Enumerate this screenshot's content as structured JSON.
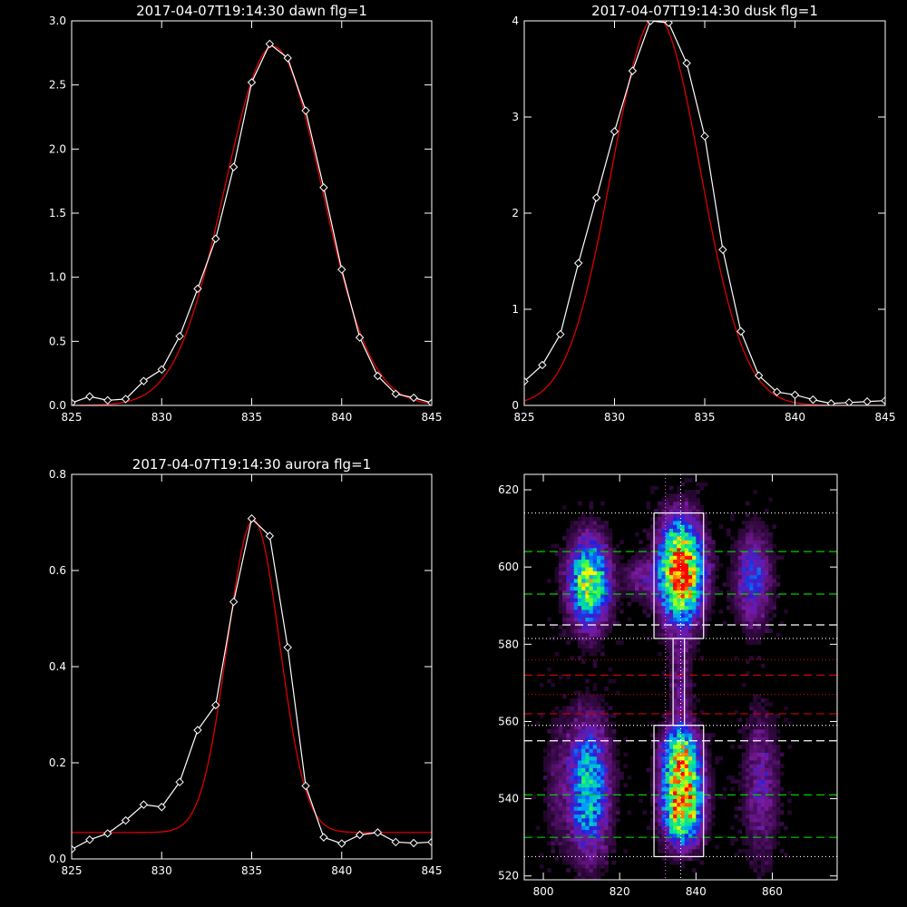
{
  "chart_data": [
    {
      "type": "line",
      "title": "2017-04-07T19:14:30 dawn flg=1",
      "xlim": [
        825,
        845
      ],
      "ylim": [
        0,
        3.0
      ],
      "xticks": [
        "825",
        "830",
        "835",
        "840",
        "845"
      ],
      "yticks": [
        "0.0",
        "0.5",
        "1.0",
        "1.5",
        "2.0",
        "2.5",
        "3.0"
      ],
      "grid": false,
      "series": [
        {
          "kind": "data",
          "color": "#ffffff",
          "marker": "diamond",
          "x": [
            825,
            826,
            827,
            828,
            829,
            830,
            831,
            832,
            833,
            834,
            835,
            836,
            837,
            838,
            839,
            840,
            841,
            842,
            843,
            844,
            845
          ],
          "y": [
            0.02,
            0.07,
            0.04,
            0.05,
            0.19,
            0.28,
            0.54,
            0.91,
            1.3,
            1.86,
            2.52,
            2.82,
            2.71,
            2.3,
            1.7,
            1.06,
            0.53,
            0.23,
            0.09,
            0.06,
            0.02
          ]
        },
        {
          "kind": "fit",
          "color": "#dd0000",
          "gauss": {
            "amp": 2.8,
            "mu": 836.2,
            "sigma": 2.7,
            "base": 0.0
          }
        }
      ]
    },
    {
      "type": "line",
      "title": "2017-04-07T19:14:30 dusk flg=1",
      "xlim": [
        825,
        845
      ],
      "ylim": [
        0,
        4
      ],
      "xticks": [
        "825",
        "830",
        "835",
        "840",
        "845"
      ],
      "yticks": [
        "0",
        "1",
        "2",
        "3",
        "4"
      ],
      "grid": false,
      "series": [
        {
          "kind": "data",
          "color": "#ffffff",
          "marker": "diamond",
          "x": [
            825,
            826,
            827,
            828,
            829,
            830,
            831,
            832,
            833,
            834,
            835,
            836,
            837,
            838,
            839,
            840,
            841,
            842,
            843,
            844,
            845
          ],
          "y": [
            0.25,
            0.42,
            0.74,
            1.48,
            2.16,
            2.85,
            3.48,
            4.0,
            3.98,
            3.56,
            2.8,
            1.62,
            0.77,
            0.31,
            0.14,
            0.11,
            0.06,
            0.02,
            0.03,
            0.04,
            0.05
          ]
        },
        {
          "kind": "fit",
          "color": "#dd0000",
          "gauss": {
            "amp": 4.05,
            "mu": 832.3,
            "sigma": 2.45,
            "base": 0.0
          }
        }
      ]
    },
    {
      "type": "line",
      "title": "2017-04-07T19:14:30 aurora flg=1",
      "xlim": [
        825,
        845
      ],
      "ylim": [
        0,
        0.8
      ],
      "xticks": [
        "825",
        "830",
        "835",
        "840",
        "845"
      ],
      "yticks": [
        "0.0",
        "0.2",
        "0.4",
        "0.6",
        "0.8"
      ],
      "grid": false,
      "series": [
        {
          "kind": "data",
          "color": "#ffffff",
          "marker": "diamond",
          "x": [
            825,
            826,
            827,
            828,
            829,
            830,
            831,
            832,
            833,
            834,
            835,
            836,
            837,
            838,
            839,
            840,
            841,
            842,
            843,
            844,
            845
          ],
          "y": [
            0.02,
            0.04,
            0.053,
            0.08,
            0.113,
            0.108,
            0.16,
            0.268,
            0.32,
            0.535,
            0.708,
            0.672,
            0.44,
            0.152,
            0.045,
            0.032,
            0.05,
            0.055,
            0.035,
            0.033,
            0.035
          ]
        },
        {
          "kind": "fit",
          "color": "#dd0000",
          "gauss": {
            "amp": 0.65,
            "mu": 835.1,
            "sigma": 1.45,
            "base": 0.055
          }
        }
      ]
    },
    {
      "type": "heatmap",
      "title": "",
      "xlim": [
        795,
        877
      ],
      "ylim": [
        519,
        624
      ],
      "xticks": [
        "800",
        "820",
        "840",
        "860"
      ],
      "yticks": [
        "520",
        "540",
        "560",
        "580",
        "600",
        "620"
      ],
      "colorscale": [
        "#000000",
        "#3a0a4a",
        "#7a1aa0",
        "#2020e0",
        "#00a0ff",
        "#00e0a0",
        "#40ff40",
        "#ffff00",
        "#ff8000",
        "#ff0000"
      ],
      "blobs": [
        {
          "x": 836,
          "y": 599,
          "sx": 4.0,
          "sy": 9,
          "amp": 1.0
        },
        {
          "x": 836.5,
          "y": 539,
          "sx": 3.6,
          "sy": 7,
          "amp": 0.95
        },
        {
          "x": 836,
          "y": 552,
          "sx": 3.4,
          "sy": 5,
          "amp": 0.6
        },
        {
          "x": 812,
          "y": 596,
          "sx": 3.8,
          "sy": 8,
          "amp": 0.7
        },
        {
          "x": 812,
          "y": 543,
          "sx": 3.8,
          "sy": 12,
          "amp": 0.55
        },
        {
          "x": 825,
          "y": 597,
          "sx": 2.5,
          "sy": 4,
          "amp": 0.18
        },
        {
          "x": 855,
          "y": 597,
          "sx": 3.5,
          "sy": 9,
          "amp": 0.32
        },
        {
          "x": 857,
          "y": 543,
          "sx": 3.5,
          "sy": 14,
          "amp": 0.22
        },
        {
          "x": 836,
          "y": 570,
          "sx": 2.0,
          "sy": 8,
          "amp": 0.2
        },
        {
          "x": 803,
          "y": 545,
          "sx": 2.5,
          "sy": 15,
          "amp": 0.1
        }
      ],
      "boxes": [
        {
          "x0": 829,
          "x1": 842,
          "y0": 581.5,
          "y1": 614
        },
        {
          "x0": 829,
          "x1": 842,
          "y0": 525,
          "y1": 559
        },
        {
          "x0": 834,
          "x1": 837,
          "y0": 559,
          "y1": 581.5
        }
      ],
      "hlines": [
        {
          "y": 604,
          "color": "#00cc00",
          "style": "dashed"
        },
        {
          "y": 593,
          "color": "#00cc00",
          "style": "dashed"
        },
        {
          "y": 541,
          "color": "#00cc00",
          "style": "dashed"
        },
        {
          "y": 530,
          "color": "#00cc00",
          "style": "dashed"
        },
        {
          "y": 585,
          "color": "#ffffff",
          "style": "dashed"
        },
        {
          "y": 555,
          "color": "#ffffff",
          "style": "dashed"
        },
        {
          "y": 572,
          "color": "#cc0000",
          "style": "dashed"
        },
        {
          "y": 562,
          "color": "#cc0000",
          "style": "dashed"
        },
        {
          "y": 614,
          "color": "#ffffff",
          "style": "dotted"
        },
        {
          "y": 581.5,
          "color": "#ffffff",
          "style": "dotted"
        },
        {
          "y": 559,
          "color": "#ffffff",
          "style": "dotted"
        },
        {
          "y": 525,
          "color": "#ffffff",
          "style": "dotted"
        },
        {
          "y": 567,
          "color": "#cc0000",
          "style": "dotted"
        },
        {
          "y": 576,
          "color": "#cc0000",
          "style": "dotted"
        }
      ],
      "vlines": [
        {
          "x": 832,
          "color": "#ff66ff",
          "style": "dotted"
        },
        {
          "x": 836,
          "color": "#ffffff",
          "style": "dotted"
        }
      ]
    }
  ]
}
